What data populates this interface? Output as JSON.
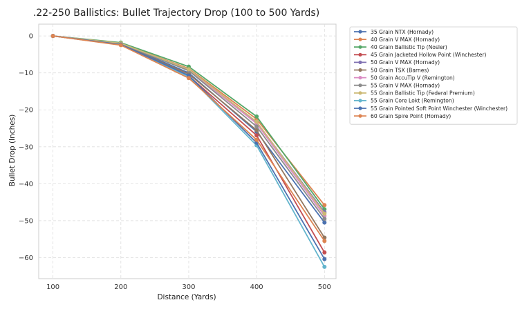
{
  "chart_data": {
    "type": "line",
    "title": ".22-250 Ballistics: Bullet Trajectory Drop (100 to 500 Yards)",
    "xlabel": "Distance (Yards)",
    "ylabel": "Bullet Drop (Inches)",
    "x": [
      100,
      200,
      300,
      400,
      500
    ],
    "xticks": [
      100,
      200,
      300,
      400,
      500
    ],
    "yticks": [
      0,
      -10,
      -20,
      -30,
      -40,
      -50,
      -60
    ],
    "xlim": [
      79,
      517
    ],
    "ylim": [
      -65.7,
      3.2
    ],
    "grid": true,
    "legend_position": "outside-right",
    "series": [
      {
        "name": "35 Grain NTX (Hornady)",
        "color": "#4c72b0",
        "values": [
          0,
          -2.1,
          -10.0,
          -25.9,
          -50.5
        ]
      },
      {
        "name": "40 Grain V MAX (Hornady)",
        "color": "#dd8452",
        "values": [
          0,
          -2.0,
          -8.8,
          -22.5,
          -45.8
        ]
      },
      {
        "name": "40 Grain Ballistic Tip (Nosler)",
        "color": "#55a868",
        "values": [
          0,
          -1.8,
          -8.3,
          -21.8,
          -46.9
        ]
      },
      {
        "name": "45 Grain Jacketed Hollow Point (Winchester)",
        "color": "#c44e52",
        "values": [
          0,
          -2.4,
          -10.8,
          -26.9,
          -58.6
        ]
      },
      {
        "name": "50 Grain V MAX (Hornady)",
        "color": "#8172b3",
        "values": [
          0,
          -2.0,
          -9.0,
          -23.3,
          -47.7
        ]
      },
      {
        "name": "50 Grain TSX (Barnes)",
        "color": "#937860",
        "values": [
          0,
          -2.3,
          -10.3,
          -25.5,
          -54.6
        ]
      },
      {
        "name": "50 Grain AccuTip V (Remington)",
        "color": "#da8bc3",
        "values": [
          0,
          -2.1,
          -9.2,
          -23.7,
          -48.7
        ]
      },
      {
        "name": "55 Grain V MAX (Hornady)",
        "color": "#8c8c8c",
        "values": [
          0,
          -2.1,
          -9.4,
          -24.5,
          -49.5
        ]
      },
      {
        "name": "55 Grain Ballistic Tip (Federal Premium)",
        "color": "#ccb974",
        "values": [
          0,
          -2.0,
          -9.0,
          -23.2,
          -48.1
        ]
      },
      {
        "name": "55 Grain Core Lokt (Remington)",
        "color": "#64b5cd",
        "values": [
          0,
          -2.4,
          -11.0,
          -29.6,
          -62.5
        ]
      },
      {
        "name": "55 Grain Pointed Soft Point Winchester (Winchester)",
        "color": "#4c72b0",
        "values": [
          0,
          -2.3,
          -10.7,
          -28.9,
          -60.4
        ]
      },
      {
        "name": "60 Grain Spire Point (Hornady)",
        "color": "#dd8452",
        "values": [
          0,
          -2.5,
          -11.4,
          -28.1,
          -55.5
        ]
      }
    ]
  }
}
